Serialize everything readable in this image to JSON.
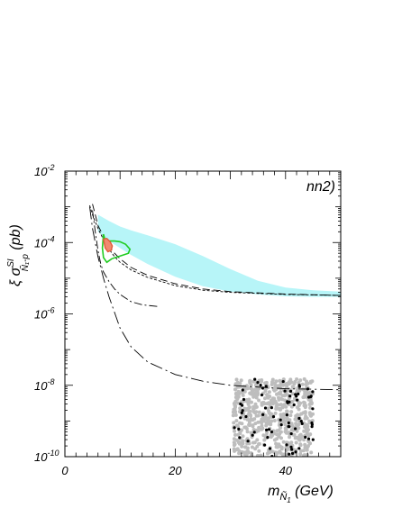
{
  "chart_data": {
    "type": "scatter",
    "title": "",
    "panel_label": "nn2)",
    "xlabel": {
      "prefix": "m",
      "sub_symbol": "Ñ",
      "sub_index": "1",
      "unit": " (GeV)"
    },
    "ylabel": {
      "prefix": "ξ σ",
      "sup": "SI",
      "sub": "Ñ₁-p",
      "unit": " (pb)"
    },
    "x_ticks": [
      "0",
      "20",
      "40"
    ],
    "x_tick_values": [
      0,
      20,
      40
    ],
    "y_ticks": [
      {
        "base": "10",
        "exp": "-10"
      },
      {
        "base": "10",
        "exp": "-8"
      },
      {
        "base": "10",
        "exp": "-6"
      },
      {
        "base": "10",
        "exp": "-4"
      },
      {
        "base": "10",
        "exp": "-2"
      }
    ],
    "y_tick_exponents": [
      -10,
      -8,
      -6,
      -4,
      -2
    ],
    "xlim": [
      0,
      50
    ],
    "ylim": [
      1e-10,
      0.01
    ],
    "yscale": "log",
    "grid": false,
    "colors": {
      "band": "#b7f5f8",
      "green_region": "#22cc22",
      "red_region": "#e05a3a",
      "red_fill": "#f08a70",
      "gray_points": "#bdbdbd",
      "black_points": "#000000"
    },
    "curves": [
      {
        "style": "dashed",
        "x": [
          5.0,
          5.5,
          6.0,
          7.0,
          8.0,
          9.0,
          10,
          12,
          15,
          20,
          25,
          30,
          40,
          50
        ],
        "y": [
          0.0012,
          0.0006,
          0.0003,
          0.00015,
          8e-05,
          5e-05,
          3.5e-05,
          2e-05,
          1.2e-05,
          7e-06,
          5e-06,
          4.2e-06,
          3.6e-06,
          3.3e-06
        ]
      },
      {
        "style": "short-dashed",
        "x": [
          4.5,
          5.0,
          6.0,
          7.0,
          8.0,
          9.0,
          10,
          12,
          15,
          20,
          25,
          30,
          40,
          50
        ],
        "y": [
          0.0011,
          0.0006,
          0.00025,
          0.00012,
          6.5e-05,
          4e-05,
          2.8e-05,
          1.7e-05,
          1.05e-05,
          6.2e-06,
          4.6e-06,
          4e-06,
          3.5e-06,
          3.3e-06
        ]
      },
      {
        "style": "dash-dot",
        "x": [
          5.0,
          5.5,
          6.0,
          6.5,
          7.0,
          8.0,
          9.0,
          10,
          12,
          14,
          17
        ],
        "y": [
          0.0008,
          0.0002,
          6e-05,
          2.5e-05,
          1.5e-05,
          8e-06,
          5e-06,
          3.5e-06,
          2.2e-06,
          1.8e-06,
          1.6e-06
        ]
      },
      {
        "style": "long-dash-dot",
        "x": [
          4.5,
          5.0,
          6.0,
          7.0,
          8.0,
          10,
          12,
          15,
          20,
          25,
          30,
          40,
          50
        ],
        "y": [
          0.001,
          0.00025,
          4e-05,
          1e-05,
          3e-06,
          4e-07,
          1.2e-07,
          4.5e-08,
          2e-08,
          1.3e-08,
          1e-08,
          8e-09,
          7.5e-09
        ]
      }
    ],
    "band": {
      "x": [
        6.0,
        8.0,
        10,
        12,
        15,
        20,
        25,
        30,
        35,
        40,
        45,
        50
      ],
      "y_low": [
        0.0002,
        0.00011,
        7e-05,
        4.5e-05,
        2.5e-05,
        1.1e-05,
        6e-06,
        4.2e-06,
        3.5e-06,
        3.1e-06,
        3e-06,
        3e-06
      ],
      "y_high": [
        0.0006,
        0.0004,
        0.00028,
        0.00022,
        0.00016,
        9e-05,
        4.2e-05,
        1.8e-05,
        8.5e-06,
        5.5e-06,
        4.6e-06,
        4.2e-06
      ]
    },
    "green_region": {
      "x": [
        7.0,
        7.2,
        8.0,
        9.0,
        10,
        11,
        11.8,
        11.5,
        10,
        8.5,
        7.6,
        7.0,
        6.8,
        7.0
      ],
      "y": [
        0.00017,
        0.00013,
        0.00011,
        0.00011,
        0.000105,
        9e-05,
        6.5e-05,
        5e-05,
        4.2e-05,
        3.5e-05,
        2.8e-05,
        3.8e-05,
        7e-05,
        0.00017
      ]
    },
    "red_region": {
      "x": [
        7.0,
        7.6,
        8.2,
        8.6,
        8.4,
        7.8,
        7.3,
        7.0
      ],
      "y": [
        0.000125,
        0.00013,
        0.000105,
        8e-05,
        6e-05,
        5.5e-05,
        7e-05,
        0.000125
      ]
    },
    "scatter_region": {
      "xlim": [
        30.5,
        45
      ],
      "ylim": [
        1e-10,
        1.5e-08
      ],
      "gray_count": 650,
      "black_count": 75
    }
  }
}
